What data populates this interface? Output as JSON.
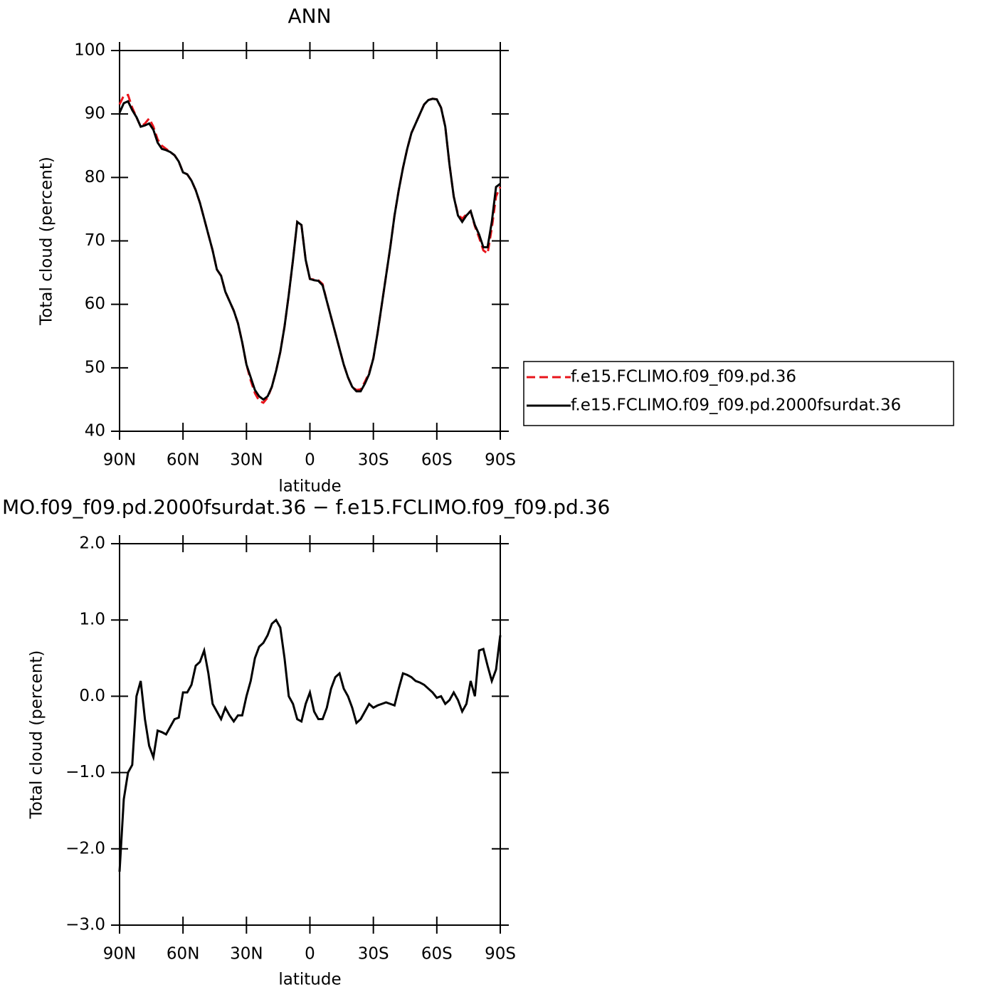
{
  "chart_data": [
    {
      "type": "line",
      "title": "ANN",
      "xlabel": "latitude",
      "ylabel": "Total cloud (percent)",
      "x": [
        90,
        88,
        86,
        84,
        82,
        80,
        78,
        76,
        74,
        72,
        70,
        68,
        66,
        64,
        62,
        60,
        58,
        56,
        54,
        52,
        50,
        48,
        46,
        44,
        42,
        40,
        38,
        36,
        34,
        32,
        30,
        28,
        26,
        24,
        22,
        20,
        18,
        16,
        14,
        12,
        10,
        8,
        6,
        4,
        2,
        0,
        -2,
        -4,
        -6,
        -8,
        -10,
        -12,
        -14,
        -16,
        -18,
        -20,
        -22,
        -24,
        -26,
        -28,
        -30,
        -32,
        -34,
        -36,
        -38,
        -40,
        -42,
        -44,
        -46,
        -48,
        -50,
        -52,
        -54,
        -56,
        -58,
        -60,
        -62,
        -64,
        -66,
        -68,
        -70,
        -72,
        -74,
        -76,
        -78,
        -80,
        -82,
        -84,
        -86,
        -88,
        -90
      ],
      "series": [
        {
          "name": "f.e15.FCLIMO.f09_f09.pd.36",
          "color": "#e8141b",
          "dash": "dashed",
          "values": [
            91.5,
            92.9,
            93.0,
            91.0,
            89.5,
            88.0,
            88.5,
            89.3,
            88.0,
            86.0,
            85.0,
            84.5,
            84.0,
            83.5,
            82.5,
            80.8,
            80.5,
            79.5,
            78.0,
            76.0,
            73.5,
            71.0,
            68.5,
            65.5,
            64.5,
            62.0,
            60.5,
            59.0,
            57.0,
            54.0,
            50.5,
            48.0,
            46.0,
            44.8,
            44.5,
            45.3,
            47.0,
            49.5,
            52.5,
            56.5,
            61.5,
            67.0,
            73.0,
            72.5,
            67.0,
            64.0,
            63.9,
            63.8,
            63.2,
            60.5,
            58.0,
            55.5,
            53.0,
            50.5,
            48.5,
            47.0,
            46.5,
            46.6,
            47.8,
            49.2,
            51.5,
            55.5,
            60.0,
            64.5,
            69.0,
            74.0,
            78.0,
            81.5,
            84.5,
            87.0,
            88.5,
            90.0,
            91.5,
            92.2,
            92.4,
            92.3,
            91.0,
            88.0,
            82.0,
            77.0,
            74.2,
            73.5,
            74.2,
            74.7,
            72.3,
            70.5,
            68.5,
            68.0,
            72.0,
            77.0,
            78.5
          ]
        },
        {
          "name": "f.e15.FCLIMO.f09_f09.pd.2000fsurdat.36",
          "color": "#000000",
          "dash": "solid",
          "values": [
            90.2,
            91.7,
            92.0,
            90.6,
            89.5,
            88.0,
            88.2,
            88.5,
            87.5,
            85.5,
            84.5,
            84.3,
            84.0,
            83.5,
            82.5,
            80.8,
            80.5,
            79.5,
            78.0,
            76.0,
            73.5,
            71.0,
            68.5,
            65.5,
            64.5,
            62.0,
            60.5,
            59.0,
            57.0,
            54.0,
            50.5,
            48.5,
            46.5,
            45.5,
            45.0,
            45.5,
            47.0,
            49.5,
            52.5,
            56.5,
            61.5,
            67.0,
            73.0,
            72.5,
            67.0,
            64.0,
            63.8,
            63.7,
            63.0,
            60.5,
            58.0,
            55.5,
            53.0,
            50.5,
            48.5,
            47.0,
            46.3,
            46.3,
            47.5,
            49.0,
            51.5,
            55.5,
            60.0,
            64.5,
            69.0,
            74.0,
            78.0,
            81.5,
            84.5,
            87.0,
            88.5,
            90.0,
            91.5,
            92.2,
            92.4,
            92.3,
            91.0,
            88.0,
            82.0,
            77.0,
            74.0,
            73.0,
            74.0,
            74.7,
            72.5,
            71.0,
            69.0,
            69.0,
            73.0,
            78.5,
            79.0
          ]
        }
      ],
      "xlim": [
        90,
        -90
      ],
      "xticks": [
        {
          "value": 90,
          "label": "90N"
        },
        {
          "value": 60,
          "label": "60N"
        },
        {
          "value": 30,
          "label": "30N"
        },
        0,
        {
          "value": -30,
          "label": "30S"
        },
        {
          "value": -60,
          "label": "60S"
        },
        {
          "value": -90,
          "label": "90S"
        }
      ],
      "ylim": [
        40,
        100
      ],
      "yticks": [
        40,
        50,
        60,
        70,
        80,
        90,
        100
      ],
      "grid": false,
      "legend": "right"
    },
    {
      "type": "line",
      "title": "MO.f09_f09.pd.2000fsurdat.36 − f.e15.FCLIMO.f09_f09.pd.36",
      "xlabel": "latitude",
      "ylabel": "Total cloud (percent)",
      "x": [
        90,
        88,
        86,
        84,
        82,
        80,
        78,
        76,
        74,
        72,
        70,
        68,
        66,
        64,
        62,
        60,
        58,
        56,
        54,
        52,
        50,
        48,
        46,
        44,
        42,
        40,
        38,
        36,
        34,
        32,
        30,
        28,
        26,
        24,
        22,
        20,
        18,
        16,
        14,
        12,
        10,
        8,
        6,
        4,
        2,
        0,
        -2,
        -4,
        -6,
        -8,
        -10,
        -12,
        -14,
        -16,
        -18,
        -20,
        -22,
        -24,
        -26,
        -28,
        -30,
        -32,
        -34,
        -36,
        -38,
        -40,
        -42,
        -44,
        -46,
        -48,
        -50,
        -52,
        -54,
        -56,
        -58,
        -60,
        -62,
        -64,
        -66,
        -68,
        -70,
        -72,
        -74,
        -76,
        -78,
        -80,
        -82,
        -84,
        -86,
        -88,
        -90
      ],
      "series": [
        {
          "color": "#000000",
          "dash": "solid",
          "values": [
            -2.3,
            -1.35,
            -1.0,
            -0.9,
            0.0,
            0.2,
            -0.3,
            -0.65,
            -0.8,
            -0.45,
            -0.47,
            -0.5,
            -0.4,
            -0.3,
            -0.28,
            0.05,
            0.05,
            0.15,
            0.4,
            0.45,
            0.6,
            0.3,
            -0.1,
            -0.2,
            -0.3,
            -0.15,
            -0.25,
            -0.33,
            -0.25,
            -0.25,
            0.0,
            0.2,
            0.5,
            0.65,
            0.7,
            0.8,
            0.95,
            1.0,
            0.9,
            0.5,
            0.0,
            -0.1,
            -0.3,
            -0.33,
            -0.1,
            0.05,
            -0.2,
            -0.3,
            -0.3,
            -0.15,
            0.1,
            0.25,
            0.3,
            0.1,
            0.0,
            -0.15,
            -0.35,
            -0.3,
            -0.2,
            -0.1,
            -0.15,
            -0.12,
            -0.1,
            -0.08,
            -0.1,
            -0.12,
            0.1,
            0.3,
            0.28,
            0.25,
            0.2,
            0.18,
            0.15,
            0.1,
            0.05,
            -0.02,
            0.0,
            -0.1,
            -0.05,
            0.05,
            -0.05,
            -0.2,
            -0.1,
            0.2,
            0.0,
            0.6,
            0.62,
            0.4,
            0.2,
            0.35,
            0.8
          ]
        }
      ],
      "xlim": [
        90,
        -90
      ],
      "xticks": [
        {
          "value": 90,
          "label": "90N"
        },
        {
          "value": 60,
          "label": "60N"
        },
        {
          "value": 30,
          "label": "30N"
        },
        0,
        {
          "value": -30,
          "label": "30S"
        },
        {
          "value": -60,
          "label": "60S"
        },
        {
          "value": -90,
          "label": "90S"
        }
      ],
      "ylim": [
        -3,
        2
      ],
      "yticks": [
        {
          "value": -3,
          "label": "−3.0"
        },
        {
          "value": -2,
          "label": "−2.0"
        },
        {
          "value": -1,
          "label": "−1.0"
        },
        {
          "value": 0,
          "label": "0.0"
        },
        {
          "value": 1,
          "label": "1.0"
        },
        {
          "value": 2,
          "label": "2.0"
        }
      ],
      "grid": false
    }
  ]
}
